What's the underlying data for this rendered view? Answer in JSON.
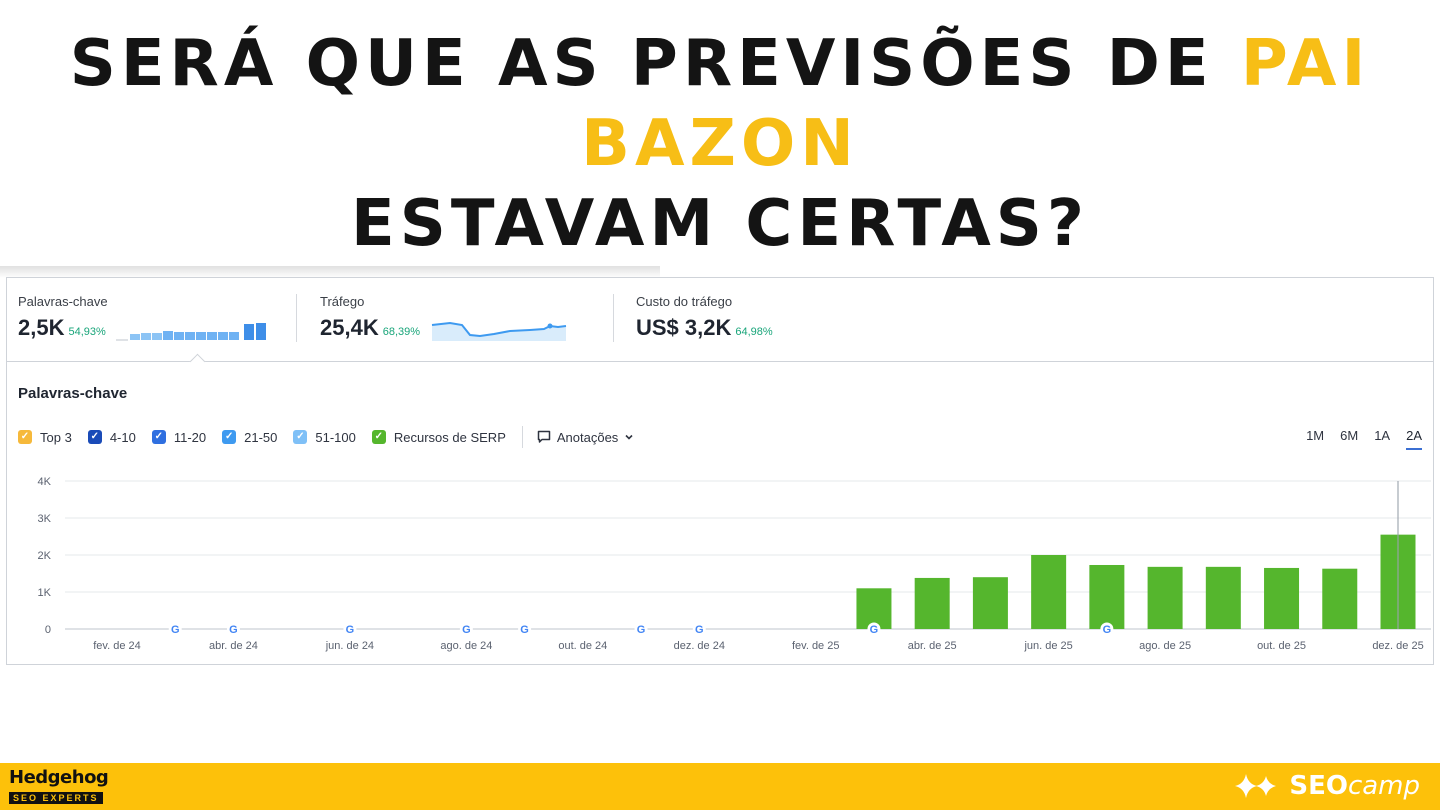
{
  "headline": {
    "line1_prefix": "SERÁ QUE AS PREVISÕES DE ",
    "line1_highlight": "PAI BAZON",
    "line2": "ESTAVAM CERTAS?",
    "highlight_color": "#f7be16"
  },
  "metrics": [
    {
      "label": "Palavras-chave",
      "value": "2,5K",
      "change": "54,93%"
    },
    {
      "label": "Tráfego",
      "value": "25,4K",
      "change": "68,39%"
    },
    {
      "label": "Custo do tráfego",
      "value": "US$ 3,2K",
      "change": "64,98%"
    }
  ],
  "section_title": "Palavras-chave",
  "legend": {
    "items": [
      {
        "label": "Top 3",
        "color": "#f6b93b",
        "checked": true
      },
      {
        "label": "4-10",
        "color": "#1a4bb8",
        "checked": true
      },
      {
        "label": "11-20",
        "color": "#2f6fe0",
        "checked": true
      },
      {
        "label": "21-50",
        "color": "#3e9af0",
        "checked": true
      },
      {
        "label": "51-100",
        "color": "#7fc0f7",
        "checked": true
      },
      {
        "label": "Recursos de SERP",
        "color": "#55b62d",
        "checked": true
      }
    ],
    "annotations_label": "Anotações"
  },
  "periods": {
    "options": [
      "1M",
      "6M",
      "1A",
      "2A"
    ],
    "active": "2A"
  },
  "chart_data": {
    "type": "bar",
    "title": "Palavras-chave",
    "x_tick_labels": [
      "fev. de 24",
      "abr. de 24",
      "jun. de 24",
      "ago. de 24",
      "out. de 24",
      "dez. de 24",
      "fev. de 25",
      "abr. de 25",
      "jun. de 25",
      "ago. de 25",
      "out. de 25",
      "dez. de 25"
    ],
    "y_tick_labels": [
      "0",
      "1K",
      "2K",
      "3K",
      "4K"
    ],
    "ylim": [
      0,
      4000
    ],
    "categories": [
      "fev. de 24",
      "mar. de 24",
      "abr. de 24",
      "mai. de 24",
      "jun. de 24",
      "jul. de 24",
      "ago. de 24",
      "set. de 24",
      "out. de 24",
      "nov. de 24",
      "dez. de 24",
      "jan. de 25",
      "fev. de 25",
      "mar. de 25",
      "abr. de 25",
      "mai. de 25",
      "jun. de 25",
      "jul. de 25",
      "ago. de 25",
      "set. de 25",
      "out. de 25",
      "nov. de 25",
      "dez. de 25"
    ],
    "series": [
      {
        "name": "Recursos de SERP",
        "color": "#55b62d",
        "values": [
          0,
          0,
          0,
          0,
          0,
          0,
          0,
          0,
          0,
          0,
          0,
          0,
          0,
          1100,
          1380,
          1400,
          2000,
          1730,
          1680,
          1680,
          1650,
          1630,
          2550
        ]
      }
    ],
    "google_update_markers": [
      "mar. de 24",
      "abr. de 24",
      "jun. de 24",
      "ago. de 24",
      "set. de 24",
      "nov. de 24",
      "dez. de 24",
      "mar. de 25",
      "jul. de 25"
    ],
    "grid": true,
    "legend_position": "top-left"
  },
  "footer": {
    "brand_name": "Hedgehog",
    "brand_tagline": "SEO EXPERTS",
    "partner_seo": "SEO",
    "partner_camp": "camp",
    "background_color": "#fdc10a"
  }
}
